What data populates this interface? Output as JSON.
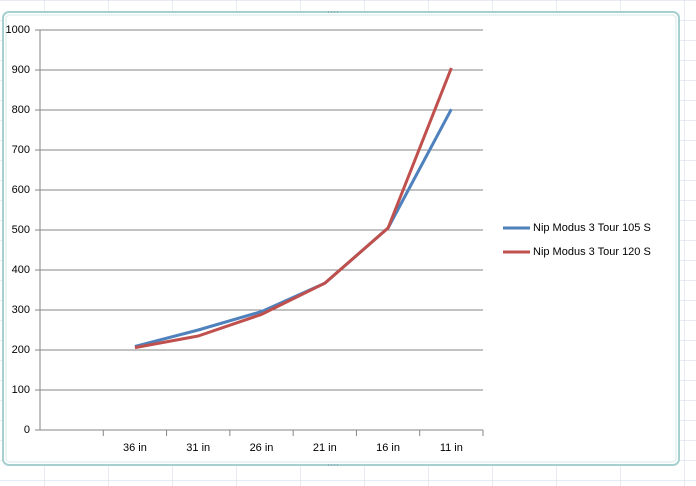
{
  "chart_data": {
    "type": "line",
    "categories": [
      null,
      "36 in",
      "31 in",
      "26 in",
      "21 in",
      "16 in",
      "11 in"
    ],
    "series": [
      {
        "name": "Nip Modus 3 Tour 105 S",
        "color": "#4f81bd",
        "values": [
          null,
          209,
          250,
          296,
          367,
          505,
          802
        ]
      },
      {
        "name": "Nip Modus 3 Tour 120 S",
        "color": "#c0504d",
        "values": [
          null,
          206,
          235,
          289,
          367,
          505,
          905
        ]
      }
    ],
    "ylim": [
      0,
      1000
    ],
    "yticks": [
      0,
      100,
      200,
      300,
      400,
      500,
      600,
      700,
      800,
      900,
      1000
    ],
    "grid": true,
    "legend": "right"
  }
}
